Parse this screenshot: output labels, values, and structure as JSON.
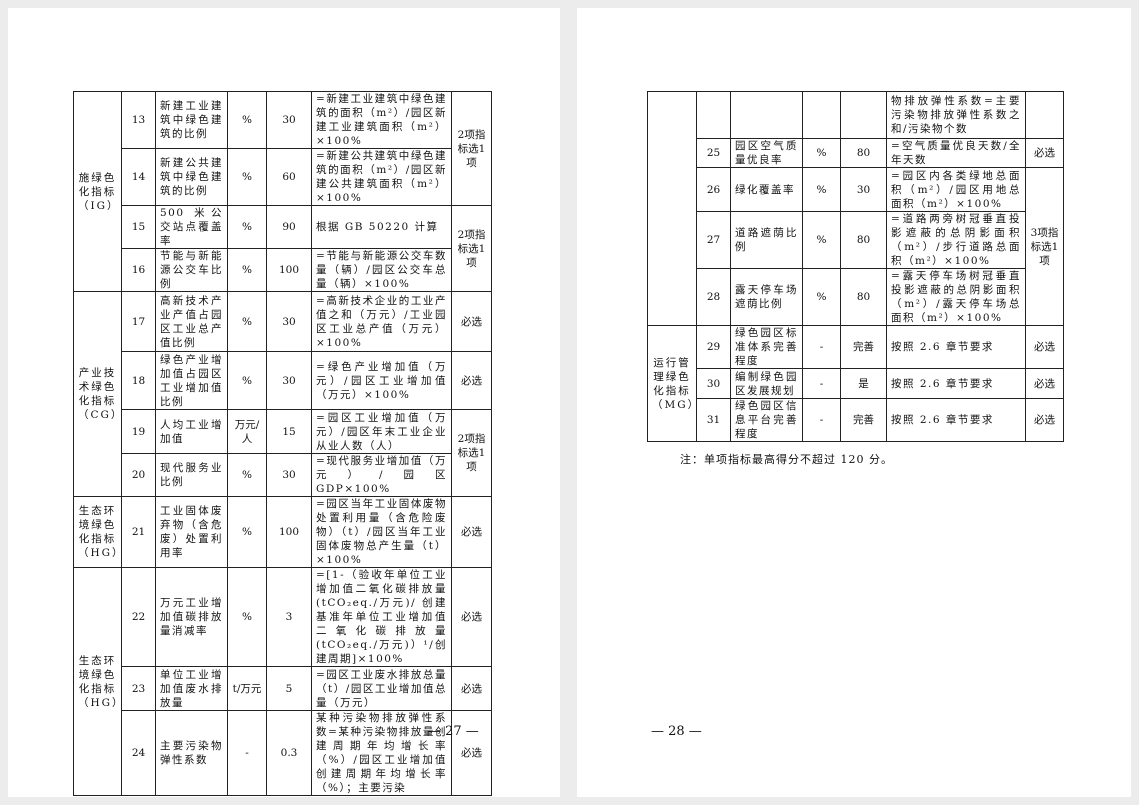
{
  "pages": [
    {
      "page_number": "— 27 —",
      "categories": [
        "施绿色化指标（IG）",
        "产业技术绿色化指标（CG）",
        "生态环境绿色化指标（HG）",
        "生态环境绿色化指标（HG）"
      ],
      "selections": [
        "2项指标选1项",
        "2项指标选1项",
        "必选",
        "必选",
        "2项指标选1项",
        "必选",
        "必选",
        "必选",
        "必选"
      ],
      "rows": [
        {
          "no": "13",
          "name": "新建工业建筑中绿色建筑的比例",
          "unit": "%",
          "target": "30",
          "formula": "=新建工业建筑中绿色建筑的面积（m²）/园区新建工业建筑面积（m²）×100%"
        },
        {
          "no": "14",
          "name": "新建公共建筑中绿色建筑的比例",
          "unit": "%",
          "target": "60",
          "formula": "=新建公共建筑中绿色建筑的面积（m²）/园区新建公共建筑面积（m²）×100%"
        },
        {
          "no": "15",
          "name": "500 米公交站点覆盖率",
          "unit": "%",
          "target": "90",
          "formula": "根据 GB 50220 计算"
        },
        {
          "no": "16",
          "name": "节能与新能源公交车比例",
          "unit": "%",
          "target": "100",
          "formula": "=节能与新能源公交车数量（辆）/园区公交车总量（辆）×100%"
        },
        {
          "no": "17",
          "name": "高新技术产业产值占园区工业总产值比例",
          "unit": "%",
          "target": "30",
          "formula": "=高新技术企业的工业产值之和（万元）/工业园区工业总产值（万元）×100%"
        },
        {
          "no": "18",
          "name": "绿色产业增加值占园区工业增加值比例",
          "unit": "%",
          "target": "30",
          "formula": "=绿色产业增加值（万元）/园区工业增加值（万元）×100%"
        },
        {
          "no": "19",
          "name": "人均工业增加值",
          "unit": "万元/人",
          "target": "15",
          "formula": "=园区工业增加值（万元）/园区年末工业企业从业人数（人）"
        },
        {
          "no": "20",
          "name": "现代服务业比例",
          "unit": "%",
          "target": "30",
          "formula": "=现代服务业增加值（万元）/园区 GDP×100%"
        },
        {
          "no": "21",
          "name": "工业固体废弃物（含危废）处置利用率",
          "unit": "%",
          "target": "100",
          "formula": "=园区当年工业固体废物处置利用量（含危险废物）（t）/园区当年工业固体废物总产生量（t）×100%"
        },
        {
          "no": "22",
          "name": "万元工业增加值碳排放量消减率",
          "unit": "%",
          "target": "3",
          "formula": "=[1-（验收年单位工业增加值二氧化碳排放量(tCO₂eq./万元)/ 创建基准年单位工业增加值二氧化碳排放量(tCO₂eq./万元)）¹/创建周期]×100%"
        },
        {
          "no": "23",
          "name": "单位工业增加值废水排放量",
          "unit": "t/万元",
          "target": "5",
          "formula": "=园区工业废水排放总量（t）/园区工业增加值总量（万元）"
        },
        {
          "no": "24",
          "name": "主要污染物弹性系数",
          "unit": "-",
          "target": "0.3",
          "formula": "某种污染物排放弹性系数=某种污染物排放量创建周期年均增长率（%）/园区工业增加值创建周期年均增长率（%）；主要污染"
        }
      ]
    },
    {
      "page_number": "— 28 —",
      "categories": [
        "",
        "运行管理绿色化指标（MG）"
      ],
      "selections": [
        "",
        "必选",
        "3项指标选1项",
        "必选",
        "必选",
        "必选"
      ],
      "rows": [
        {
          "no": "",
          "name": "",
          "unit": "",
          "target": "",
          "formula": "物排放弹性系数=主要污染物排放弹性系数之和/污染物个数"
        },
        {
          "no": "25",
          "name": "园区空气质量优良率",
          "unit": "%",
          "target": "80",
          "formula": "=空气质量优良天数/全年天数"
        },
        {
          "no": "26",
          "name": "绿化覆盖率",
          "unit": "%",
          "target": "30",
          "formula": "=园区内各类绿地总面积（m²）/园区用地总面积（m²）×100%"
        },
        {
          "no": "27",
          "name": "道路遮荫比例",
          "unit": "%",
          "target": "80",
          "formula": "=道路两旁树冠垂直投影遮蔽的总阴影面积（m²）/步行道路总面积（m²）×100%"
        },
        {
          "no": "28",
          "name": "露天停车场遮荫比例",
          "unit": "%",
          "target": "80",
          "formula": "=露天停车场树冠垂直投影遮蔽的总阴影面积（m²）/露天停车场总面积（m²）×100%"
        },
        {
          "no": "29",
          "name": "绿色园区标准体系完善程度",
          "unit": "-",
          "target": "完善",
          "formula": "按照 2.6 章节要求"
        },
        {
          "no": "30",
          "name": "编制绿色园区发展规划",
          "unit": "-",
          "target": "是",
          "formula": "按照 2.6 章节要求"
        },
        {
          "no": "31",
          "name": "绿色园区信息平台完善程度",
          "unit": "-",
          "target": "完善",
          "formula": "按照 2.6 章节要求"
        }
      ],
      "note": "注：单项指标最高得分不超过 120 分。"
    }
  ]
}
